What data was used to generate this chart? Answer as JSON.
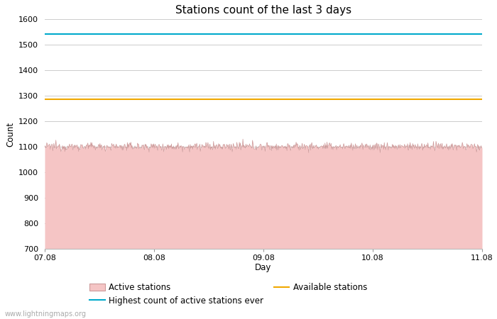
{
  "title": "Stations count of the last 3 days",
  "xlabel": "Day",
  "ylabel": "Count",
  "ylim": [
    700,
    1600
  ],
  "yticks": [
    700,
    800,
    900,
    1000,
    1100,
    1200,
    1300,
    1400,
    1500,
    1600
  ],
  "active_stations_base": 1100,
  "highest_ever": 1543,
  "available_stations": 1285,
  "highest_color": "#00aacc",
  "available_color": "#f0a800",
  "active_fill_color": "#f5c5c5",
  "active_line_color": "#cc9999",
  "background_color": "#ffffff",
  "grid_color": "#cccccc",
  "xtick_labels": [
    "07.08",
    "08.08",
    "09.08",
    "10.08",
    "11.08"
  ],
  "watermark": "www.lightningmaps.org",
  "title_fontsize": 11,
  "label_fontsize": 8.5,
  "tick_fontsize": 8
}
